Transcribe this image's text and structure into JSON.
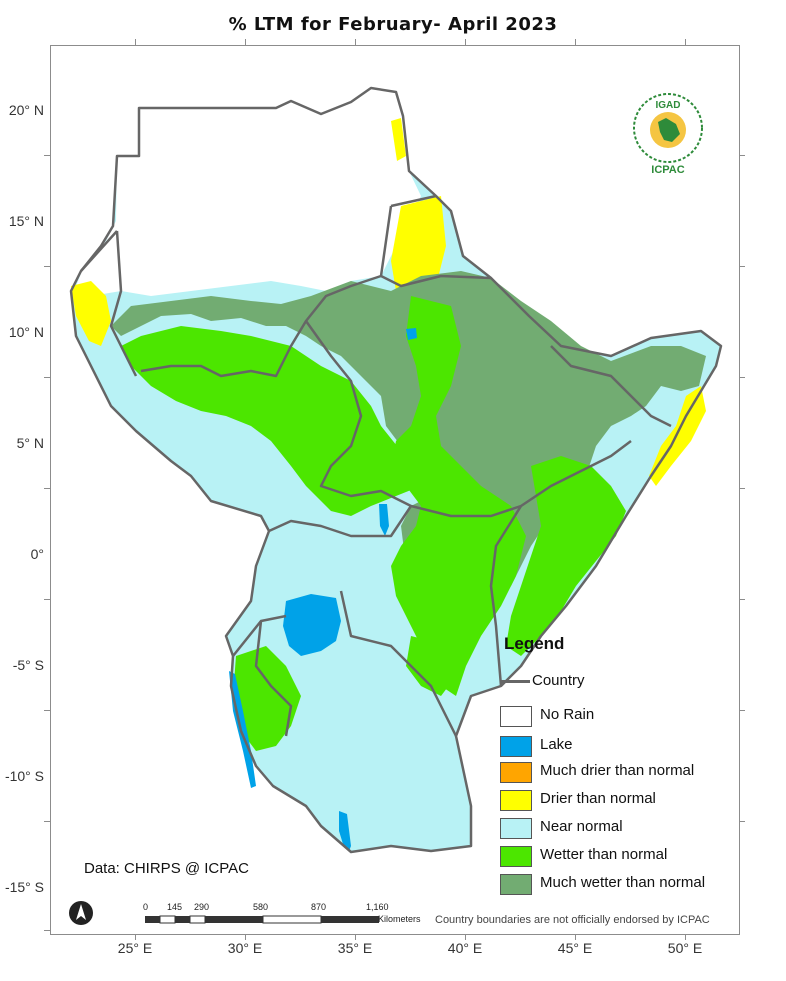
{
  "title": "% LTM    for  February- April 2023",
  "axes": {
    "lat_labels": [
      "20° N",
      "15° N",
      "10° N",
      "5° N",
      "0°",
      "-5° S",
      "-10° S",
      "-15° S"
    ],
    "lon_labels": [
      "25° E",
      "30° E",
      "35° E",
      "40° E",
      "45° E",
      "50° E"
    ]
  },
  "legend": {
    "title": "Legend",
    "items": [
      {
        "label": "Country",
        "type": "line",
        "color": "#666666"
      },
      {
        "label": "No Rain",
        "type": "box",
        "color": "#ffffff"
      },
      {
        "label": "Lake",
        "type": "box",
        "color": "#00a2e8"
      },
      {
        "label": "Much drier than normal",
        "type": "box",
        "color": "#ffa500"
      },
      {
        "label": "Drier than normal",
        "type": "box",
        "color": "#ffff00"
      },
      {
        "label": "Near normal",
        "type": "box",
        "color": "#b8f2f5"
      },
      {
        "label": "Wetter than normal",
        "type": "box",
        "color": "#4ce600"
      },
      {
        "label": "Much wetter than normal",
        "type": "box",
        "color": "#72ac72"
      }
    ]
  },
  "source": "Data: CHIRPS @ ICPAC",
  "disclaimer": "Country boundaries are not officially endorsed by ICPAC",
  "logo": {
    "top": "IGAD",
    "bottom": "ICPAC"
  },
  "scalebar": {
    "labels": [
      "0",
      "145",
      "290",
      "580",
      "870",
      "1,160"
    ],
    "unit": "Kilometers"
  },
  "colors": {
    "near_normal": "#b8f2f5",
    "wetter": "#4ce600",
    "much_wetter": "#72ac72",
    "drier": "#ffff00",
    "lake": "#00a2e8",
    "border": "#666666"
  }
}
